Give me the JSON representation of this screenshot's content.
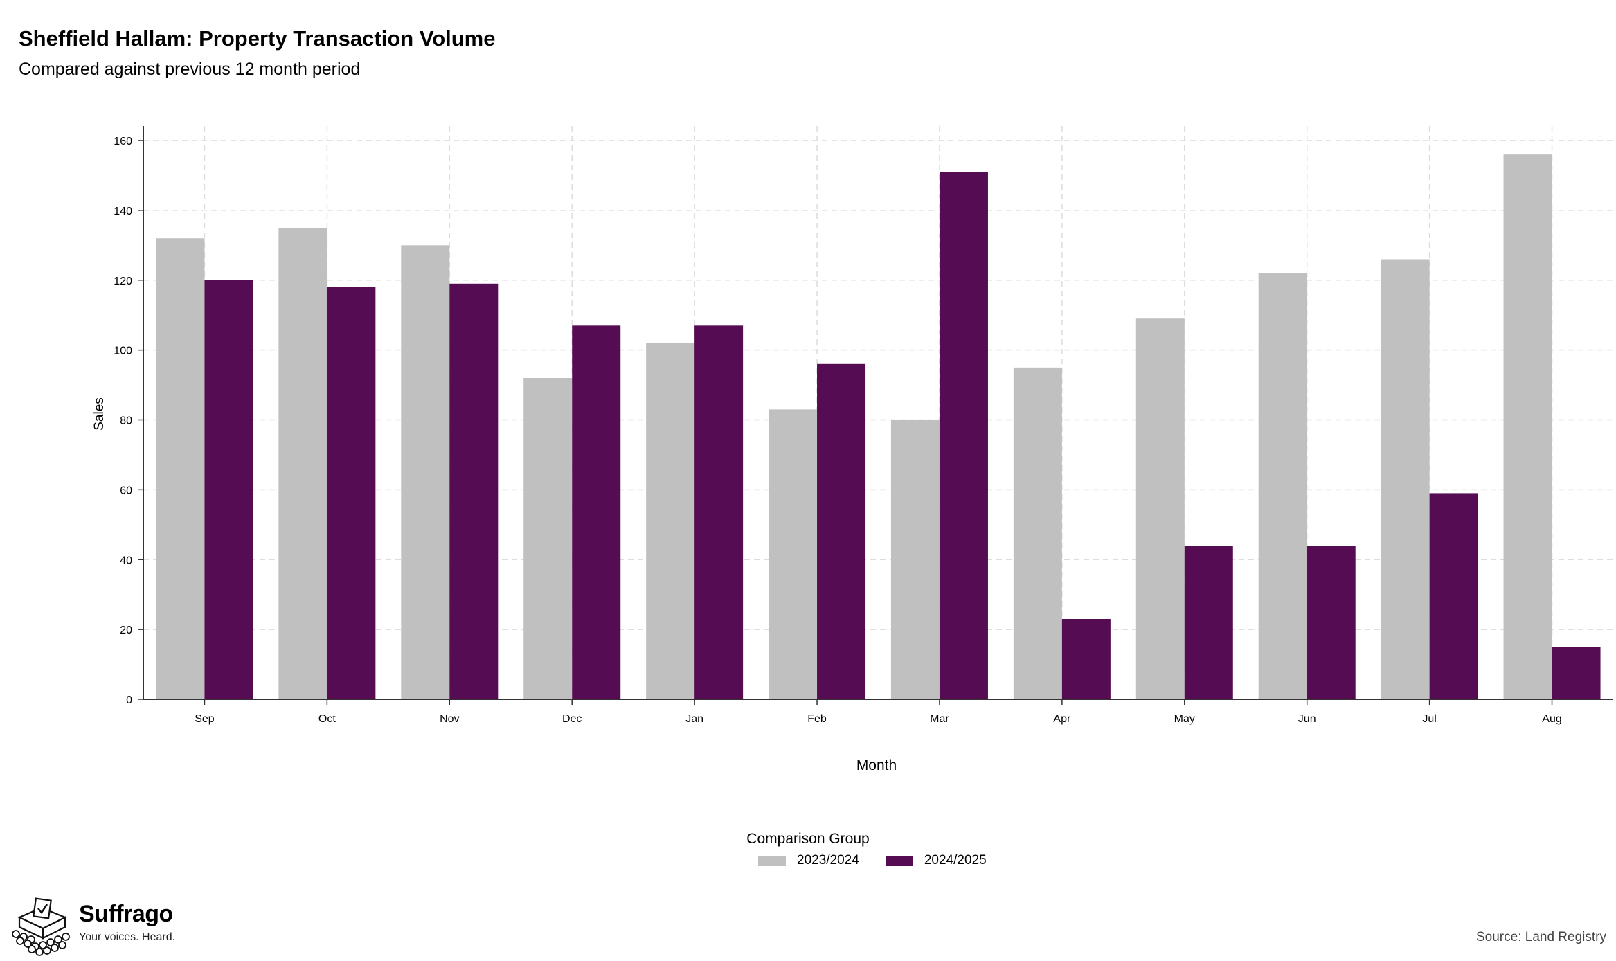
{
  "header": {
    "title": "Sheffield Hallam: Property Transaction Volume",
    "subtitle": "Compared against previous 12 month period"
  },
  "chart_data": {
    "type": "bar",
    "title": "Sheffield Hallam: Property Transaction Volume",
    "subtitle": "Compared against previous 12 month period",
    "xlabel": "Month",
    "ylabel": "Sales",
    "categories": [
      "Sep",
      "Oct",
      "Nov",
      "Dec",
      "Jan",
      "Feb",
      "Mar",
      "Apr",
      "May",
      "Jun",
      "Jul",
      "Aug"
    ],
    "series": [
      {
        "name": "2023/2024",
        "color": "#c0c0c0",
        "values": [
          132,
          135,
          130,
          92,
          102,
          83,
          80,
          95,
          109,
          122,
          126,
          156
        ]
      },
      {
        "name": "2024/2025",
        "color": "#560c52",
        "values": [
          120,
          118,
          119,
          107,
          107,
          96,
          151,
          23,
          44,
          44,
          59,
          15
        ]
      }
    ],
    "ylim": [
      0,
      160
    ],
    "yticks": [
      0,
      20,
      40,
      60,
      80,
      100,
      120,
      140,
      160
    ],
    "grid": true,
    "legend_title": "Comparison Group",
    "legend_position": "bottom"
  },
  "logo": {
    "name": "Suffrago",
    "tagline": "Your voices. Heard."
  },
  "footer": {
    "source": "Source: Land Registry"
  }
}
